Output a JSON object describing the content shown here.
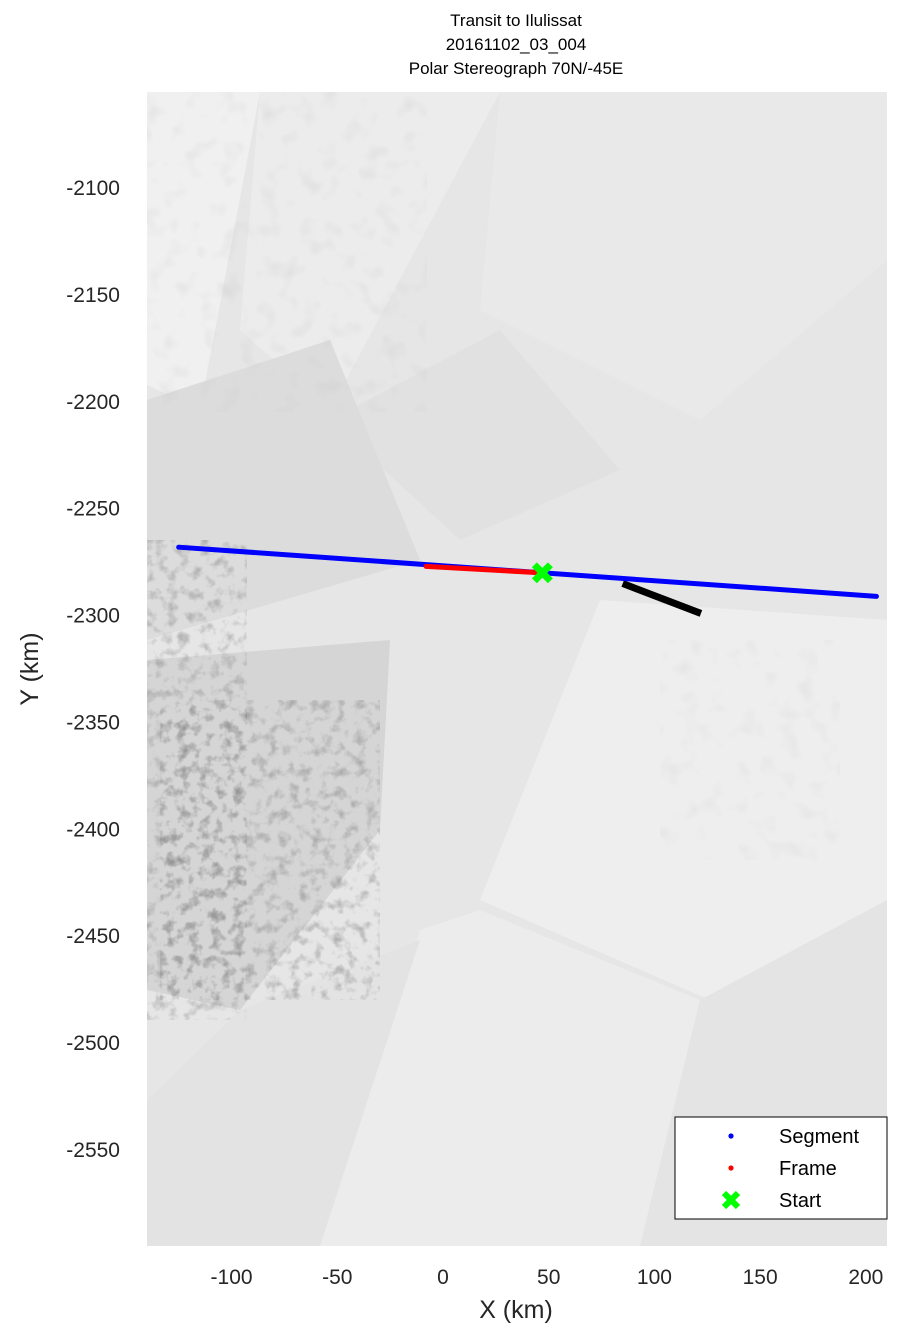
{
  "title_lines": [
    "Transit to Ilulissat",
    "20161102_03_004",
    "Polar Stereograph 70N/-45E"
  ],
  "colors": {
    "segment": "#0000ff",
    "frame": "#ff0000",
    "start": "#00ff00",
    "other_track": "#000000",
    "background": "#e8e8e8"
  },
  "chart_data": {
    "type": "map",
    "xlabel": "X (km)",
    "ylabel": "Y (km)",
    "xlim": [
      -140,
      210
    ],
    "ylim": [
      -2595,
      -2055
    ],
    "xticks": [
      -100,
      -50,
      0,
      50,
      100,
      150,
      200
    ],
    "yticks": [
      -2100,
      -2150,
      -2200,
      -2250,
      -2300,
      -2350,
      -2400,
      -2450,
      -2500,
      -2550
    ],
    "series": [
      {
        "name": "Segment",
        "color": "#0000ff",
        "x": [
          -125,
          205
        ],
        "y": [
          -2268,
          -2291
        ]
      },
      {
        "name": "Frame",
        "color": "#ff0000",
        "x": [
          -8,
          47
        ],
        "y": [
          -2277,
          -2280
        ]
      },
      {
        "name": "Start",
        "color": "#00ff00",
        "marker": "x",
        "x": [
          47
        ],
        "y": [
          -2280
        ]
      }
    ],
    "other_tracks": [
      {
        "color": "#000000",
        "x": [
          85,
          122
        ],
        "y": [
          -2285,
          -2299
        ]
      }
    ],
    "legend": {
      "entries": [
        "Segment",
        "Frame",
        "Start"
      ],
      "position": "bottom-right"
    },
    "background": "grayscale satellite image mosaic"
  }
}
